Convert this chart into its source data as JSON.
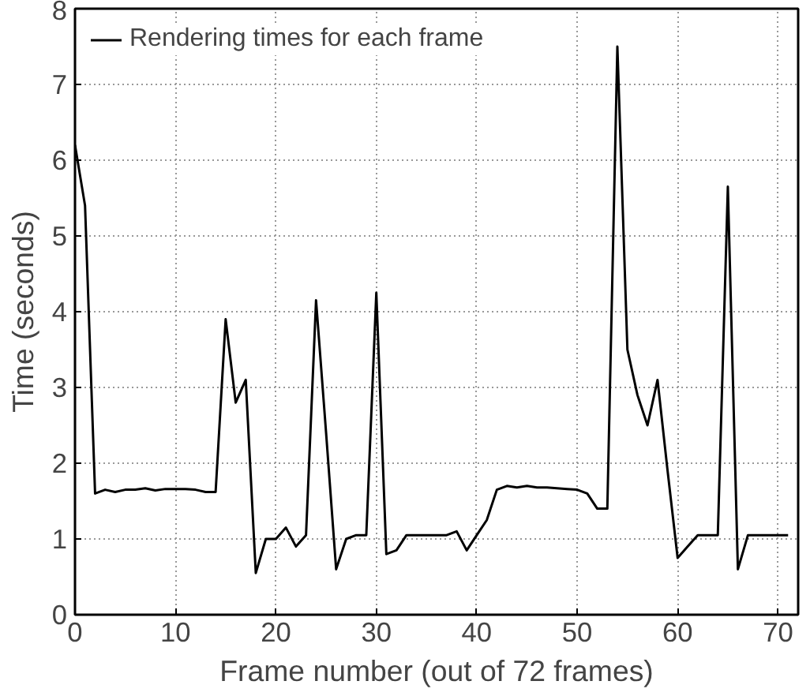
{
  "chart_data": {
    "type": "line",
    "xlabel": "Frame number (out of 72 frames)",
    "ylabel": "Time (seconds)",
    "x": [
      0,
      1,
      2,
      3,
      4,
      5,
      6,
      7,
      8,
      9,
      10,
      11,
      12,
      13,
      14,
      15,
      16,
      17,
      18,
      19,
      20,
      21,
      22,
      23,
      24,
      25,
      26,
      27,
      28,
      29,
      30,
      31,
      32,
      33,
      34,
      35,
      36,
      37,
      38,
      39,
      40,
      41,
      42,
      43,
      44,
      45,
      46,
      47,
      48,
      49,
      50,
      51,
      52,
      53,
      54,
      55,
      56,
      57,
      58,
      59,
      60,
      61,
      62,
      63,
      64,
      65,
      66,
      67,
      68,
      69,
      70,
      71
    ],
    "series": [
      {
        "name": "Rendering times for each frame",
        "color": "#000000",
        "values": [
          6.2,
          5.4,
          1.6,
          1.65,
          1.62,
          1.65,
          1.65,
          1.67,
          1.64,
          1.66,
          1.66,
          1.66,
          1.65,
          1.62,
          1.62,
          3.9,
          2.8,
          3.1,
          0.55,
          1.0,
          1.0,
          1.15,
          0.9,
          1.05,
          4.15,
          2.4,
          0.6,
          1.0,
          1.05,
          1.05,
          4.25,
          0.8,
          0.85,
          1.05,
          1.05,
          1.05,
          1.05,
          1.05,
          1.1,
          0.85,
          1.05,
          1.25,
          1.65,
          1.7,
          1.68,
          1.7,
          1.68,
          1.68,
          1.67,
          1.66,
          1.65,
          1.6,
          1.4,
          1.4,
          7.5,
          3.5,
          2.9,
          2.5,
          3.1,
          1.9,
          0.75,
          0.9,
          1.05,
          1.05,
          1.05,
          5.65,
          0.6,
          1.05,
          1.05,
          1.05,
          1.05,
          1.05
        ]
      }
    ],
    "xlim": [
      0,
      72
    ],
    "ylim": [
      0,
      8
    ],
    "xticks": [
      0,
      10,
      20,
      30,
      40,
      50,
      60,
      70
    ],
    "yticks": [
      0,
      1,
      2,
      3,
      4,
      5,
      6,
      7,
      8
    ],
    "grid": true,
    "legend": "top left",
    "line_style": "solid"
  }
}
